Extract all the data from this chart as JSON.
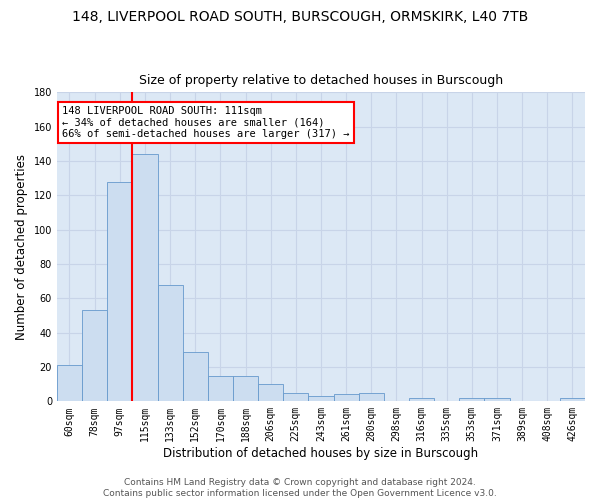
{
  "title": "148, LIVERPOOL ROAD SOUTH, BURSCOUGH, ORMSKIRK, L40 7TB",
  "subtitle": "Size of property relative to detached houses in Burscough",
  "xlabel": "Distribution of detached houses by size in Burscough",
  "ylabel": "Number of detached properties",
  "bar_labels": [
    "60sqm",
    "78sqm",
    "97sqm",
    "115sqm",
    "133sqm",
    "152sqm",
    "170sqm",
    "188sqm",
    "206sqm",
    "225sqm",
    "243sqm",
    "261sqm",
    "280sqm",
    "298sqm",
    "316sqm",
    "335sqm",
    "353sqm",
    "371sqm",
    "389sqm",
    "408sqm",
    "426sqm"
  ],
  "bar_values": [
    21,
    53,
    128,
    144,
    68,
    29,
    15,
    15,
    10,
    5,
    3,
    4,
    5,
    0,
    2,
    0,
    2,
    2,
    0,
    0,
    2
  ],
  "bar_color": "#ccddf0",
  "bar_edge_color": "#6699cc",
  "red_line_x": 3,
  "annotation_line1": "148 LIVERPOOL ROAD SOUTH: 111sqm",
  "annotation_line2": "← 34% of detached houses are smaller (164)",
  "annotation_line3": "66% of semi-detached houses are larger (317) →",
  "annotation_box_color": "white",
  "annotation_box_edge_color": "red",
  "ylim": [
    0,
    180
  ],
  "yticks": [
    0,
    20,
    40,
    60,
    80,
    100,
    120,
    140,
    160,
    180
  ],
  "grid_color": "#c8d4e8",
  "bg_color": "#dce8f5",
  "footer": "Contains HM Land Registry data © Crown copyright and database right 2024.\nContains public sector information licensed under the Open Government Licence v3.0.",
  "title_fontsize": 10,
  "subtitle_fontsize": 9,
  "xlabel_fontsize": 8.5,
  "ylabel_fontsize": 8.5,
  "tick_fontsize": 7,
  "footer_fontsize": 6.5,
  "ann_fontsize": 7.5
}
